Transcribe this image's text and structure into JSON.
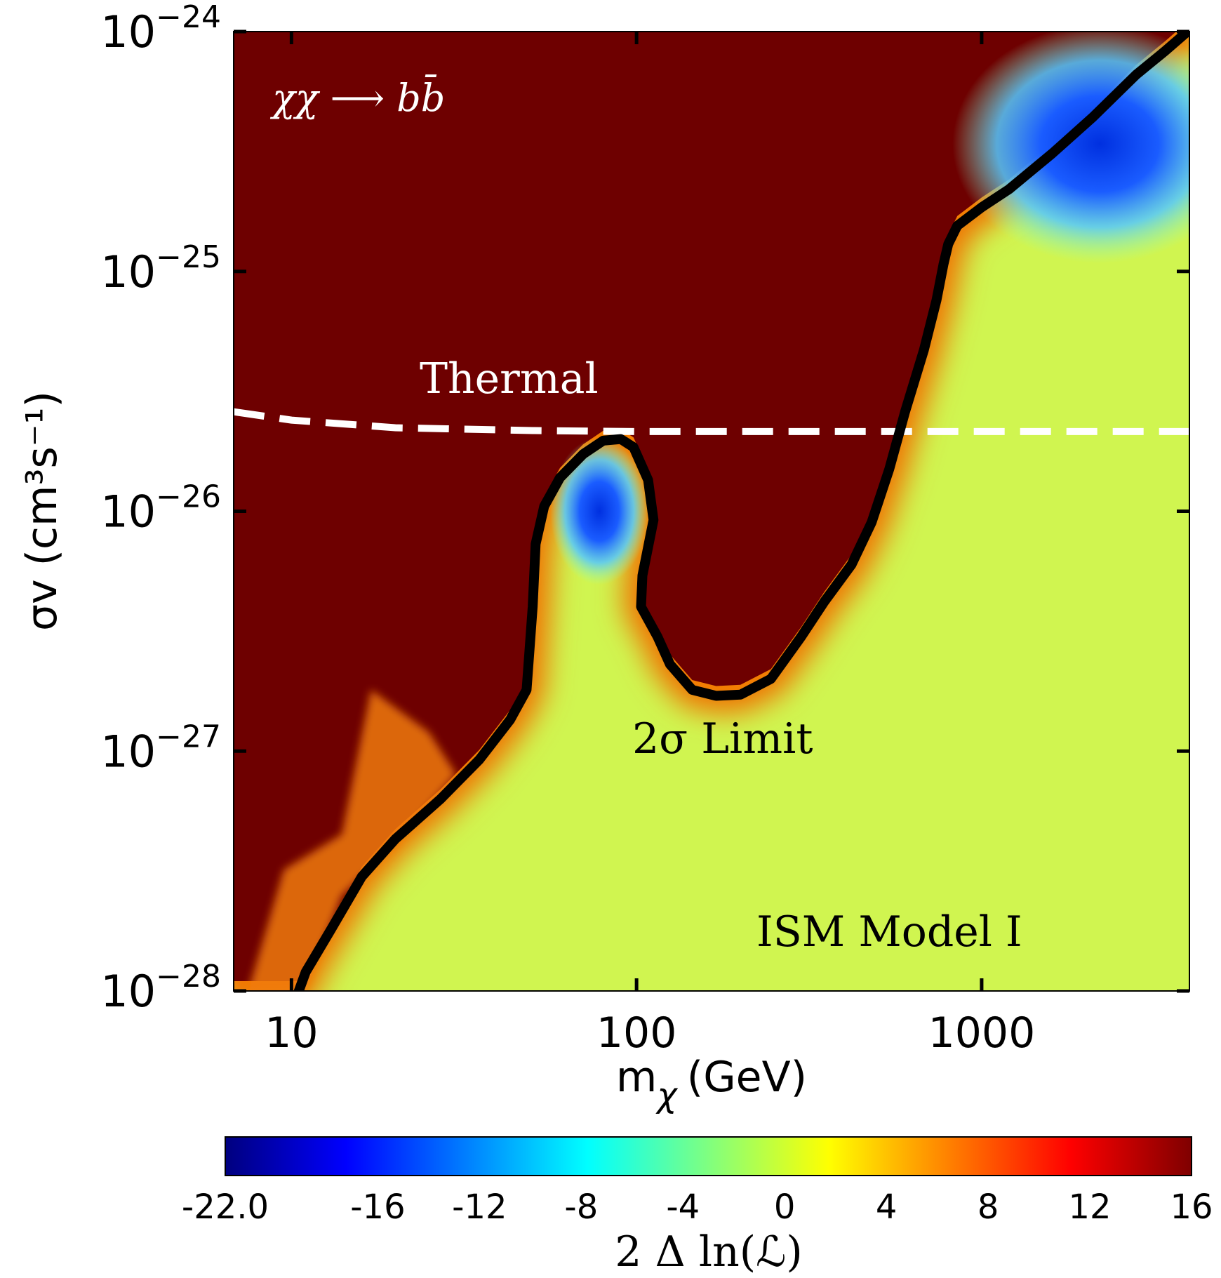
{
  "chart_data": {
    "type": "heatmap",
    "xlabel": "m",
    "xlabel_sub": "χ",
    "xlabel_unit": "(GeV)",
    "ylabel": "σv (cm³s⁻¹)",
    "xscale": "log",
    "yscale": "log",
    "xlim": [
      6.8,
      4000
    ],
    "ylim": [
      1e-28,
      1e-24
    ],
    "x_ticks": [
      {
        "value": 10,
        "label": "10"
      },
      {
        "value": 100,
        "label": "100"
      },
      {
        "value": 1000,
        "label": "1000"
      }
    ],
    "y_ticks": [
      {
        "value": 1e-24,
        "base": "10",
        "exp": "−24"
      },
      {
        "value": 1e-25,
        "base": "10",
        "exp": "−25"
      },
      {
        "value": 1e-26,
        "base": "10",
        "exp": "−26"
      },
      {
        "value": 1e-27,
        "base": "10",
        "exp": "−27"
      },
      {
        "value": 1e-28,
        "base": "10",
        "exp": "−28"
      }
    ],
    "colorbar": {
      "label": "2 Δ ln(ℒ)",
      "range": [
        -22,
        16
      ],
      "ticks": [
        "-22.0",
        "-16",
        "-12",
        "-8",
        "-4",
        "0",
        "4",
        "8",
        "12",
        "16"
      ],
      "tick_values": [
        -22,
        -16,
        -12,
        -8,
        -4,
        0,
        4,
        8,
        12,
        16
      ],
      "colormap": "jet"
    },
    "annotations": {
      "channel": "χχ ⟶ bb̄",
      "thermal": "Thermal",
      "limit": "2σ Limit",
      "model": "ISM Model I"
    },
    "thermal_line": {
      "style": "dashed",
      "color": "#ffffff",
      "points": [
        [
          6.8,
          2.6e-26
        ],
        [
          10,
          2.4e-26
        ],
        [
          20,
          2.23e-26
        ],
        [
          50,
          2.17e-26
        ],
        [
          100,
          2.15e-26
        ],
        [
          1000,
          2.15e-26
        ],
        [
          4000,
          2.15e-26
        ]
      ]
    },
    "limit_contour": {
      "color": "#000000",
      "points": [
        [
          10.5,
          1e-28
        ],
        [
          11,
          1.2e-28
        ],
        [
          13,
          1.8e-28
        ],
        [
          16,
          3e-28
        ],
        [
          20,
          4.3e-28
        ],
        [
          27,
          6.3e-28
        ],
        [
          35,
          9.2e-28
        ],
        [
          43,
          1.35e-27
        ],
        [
          48,
          1.8e-27
        ],
        [
          50,
          4e-27
        ],
        [
          51,
          7.3e-27
        ],
        [
          54,
          1.05e-26
        ],
        [
          60,
          1.38e-26
        ],
        [
          70,
          1.73e-26
        ],
        [
          80,
          1.97e-26
        ],
        [
          90,
          2e-26
        ],
        [
          98,
          1.85e-26
        ],
        [
          108,
          1.35e-26
        ],
        [
          112,
          9.2e-27
        ],
        [
          104,
          5.4e-27
        ],
        [
          103,
          4e-27
        ],
        [
          115,
          3e-27
        ],
        [
          125,
          2.3e-27
        ],
        [
          145,
          1.8e-27
        ],
        [
          170,
          1.7e-27
        ],
        [
          200,
          1.72e-27
        ],
        [
          245,
          2e-27
        ],
        [
          300,
          3e-27
        ],
        [
          350,
          4.2e-27
        ],
        [
          420,
          6e-27
        ],
        [
          480,
          9e-27
        ],
        [
          540,
          1.5e-26
        ],
        [
          600,
          2.6e-26
        ],
        [
          680,
          4.7e-26
        ],
        [
          740,
          7.6e-26
        ],
        [
          775,
          1.07e-25
        ],
        [
          800,
          1.3e-25
        ],
        [
          850,
          1.55e-25
        ],
        [
          1000,
          1.85e-25
        ],
        [
          1200,
          2.2e-25
        ],
        [
          1600,
          3.1e-25
        ],
        [
          2100,
          4.4e-25
        ],
        [
          2800,
          6.6e-25
        ],
        [
          3400,
          8.3e-25
        ],
        [
          3950,
          1e-24
        ]
      ]
    },
    "regions": [
      {
        "name": "excluded",
        "value": 16,
        "description": ""
      },
      {
        "name": "allowed-baseline",
        "value": 1.5
      },
      {
        "name": "minimum-low-mass",
        "center": [
          78,
          1e-26
        ],
        "value": -17
      },
      {
        "name": "minimum-high-mass",
        "center": [
          2500,
          3.5e-25
        ],
        "value": -17
      }
    ]
  }
}
